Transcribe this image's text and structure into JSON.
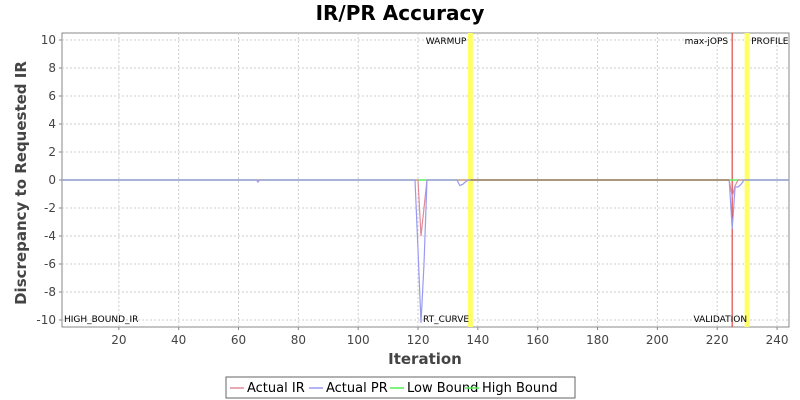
{
  "chart_data": {
    "type": "line",
    "title": "IR/PR Accuracy",
    "xlabel": "Iteration",
    "ylabel": "Discrepancy to Requested IR",
    "xlim": [
      1,
      244
    ],
    "ylim": [
      -10.5,
      10.5
    ],
    "x_ticks": [
      20,
      40,
      60,
      80,
      100,
      120,
      140,
      160,
      180,
      200,
      220,
      240
    ],
    "y_ticks": [
      -10,
      -8,
      -6,
      -4,
      -2,
      0,
      2,
      4,
      6,
      8,
      10
    ],
    "grid": true,
    "legend_position": "bottom",
    "colors": {
      "actual_ir": "#e08a9a",
      "actual_pr": "#9a9af0",
      "low_bound": "#55ee55",
      "high_bound": "#55ee55",
      "max_jops": "#dd2222",
      "phase_band": "#ffff66",
      "flat": "#a06040"
    },
    "series": [
      {
        "name": "Actual IR",
        "points": [
          [
            1,
            0
          ],
          [
            118,
            0
          ],
          [
            119,
            0
          ],
          [
            120,
            0
          ],
          [
            121,
            -4
          ],
          [
            122,
            -2
          ],
          [
            123,
            0
          ],
          [
            136,
            0
          ],
          [
            137,
            0
          ],
          [
            224,
            0
          ],
          [
            225,
            -1.2
          ],
          [
            226,
            -0.4
          ],
          [
            227,
            0
          ],
          [
            244,
            0
          ]
        ]
      },
      {
        "name": "Actual PR",
        "points": [
          [
            1,
            0
          ],
          [
            66,
            0
          ],
          [
            66.5,
            -0.15
          ],
          [
            67,
            0
          ],
          [
            118,
            0
          ],
          [
            119,
            0
          ],
          [
            120,
            -5
          ],
          [
            121,
            -10.2
          ],
          [
            122,
            -6
          ],
          [
            123,
            0
          ],
          [
            133,
            0
          ],
          [
            134,
            -0.4
          ],
          [
            135,
            -0.3
          ],
          [
            136,
            -0.1
          ],
          [
            137,
            0
          ],
          [
            224,
            0
          ],
          [
            225,
            -3.5
          ],
          [
            226,
            -0.5
          ],
          [
            227,
            -0.5
          ],
          [
            228,
            -0.3
          ],
          [
            229,
            0
          ],
          [
            244,
            0
          ]
        ]
      },
      {
        "name": "Low Bound",
        "points": [
          [
            1,
            0
          ],
          [
            137,
            0
          ],
          [
            244,
            0
          ]
        ]
      },
      {
        "name": "High Bound",
        "points": [
          [
            1,
            0
          ],
          [
            137,
            0
          ],
          [
            244,
            0
          ]
        ]
      }
    ],
    "markers": [
      {
        "label": "WARMUP",
        "x": 137.5,
        "kind": "band",
        "label_pos": "top-left"
      },
      {
        "label": "max-jOPS",
        "x": 225,
        "kind": "line",
        "label_pos": "top-left"
      },
      {
        "label": "PROFILE",
        "x": 230,
        "kind": "band",
        "label_pos": "top-right"
      },
      {
        "label": "HIGH_BOUND_IR",
        "x": 1,
        "kind": "none",
        "label_pos": "bottom-right"
      },
      {
        "label": "RT_CURVE",
        "x": 121,
        "kind": "none",
        "label_pos": "bottom-right"
      },
      {
        "label": "VALIDATION",
        "x": 230,
        "kind": "none",
        "label_pos": "bottom-left"
      }
    ]
  }
}
